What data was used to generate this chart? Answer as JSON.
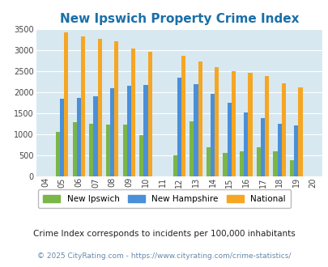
{
  "title": "New Ipswich Property Crime Index",
  "years": [
    2004,
    2005,
    2006,
    2007,
    2008,
    2009,
    2010,
    2011,
    2012,
    2013,
    2014,
    2015,
    2016,
    2017,
    2018,
    2019,
    2020
  ],
  "year_labels": [
    "04",
    "05",
    "06",
    "07",
    "08",
    "09",
    "10",
    "11",
    "12",
    "13",
    "14",
    "15",
    "16",
    "17",
    "18",
    "19",
    "20"
  ],
  "new_ipswich": [
    0,
    1050,
    1280,
    1240,
    1230,
    1230,
    970,
    0,
    490,
    1300,
    700,
    560,
    590,
    700,
    590,
    380,
    0
  ],
  "new_hampshire": [
    0,
    1840,
    1860,
    1900,
    2100,
    2150,
    2180,
    0,
    2350,
    2190,
    1970,
    1760,
    1510,
    1390,
    1250,
    1220,
    0
  ],
  "national": [
    0,
    3420,
    3340,
    3270,
    3220,
    3050,
    2960,
    0,
    2860,
    2730,
    2590,
    2500,
    2470,
    2380,
    2210,
    2110,
    0
  ],
  "colors": {
    "new_ipswich": "#7ab648",
    "new_hampshire": "#4a90d9",
    "national": "#f5a623"
  },
  "ylim": [
    0,
    3500
  ],
  "yticks": [
    0,
    500,
    1000,
    1500,
    2000,
    2500,
    3000,
    3500
  ],
  "plot_bg": "#d8e8f0",
  "fig_bg": "#ffffff",
  "title_color": "#1a6fa8",
  "title_fontsize": 11,
  "footnote1": "Crime Index corresponds to incidents per 100,000 inhabitants",
  "footnote2": "© 2025 CityRating.com - https://www.cityrating.com/crime-statistics/",
  "legend_labels": [
    "New Ipswich",
    "New Hampshire",
    "National"
  ],
  "bar_width": 0.25
}
